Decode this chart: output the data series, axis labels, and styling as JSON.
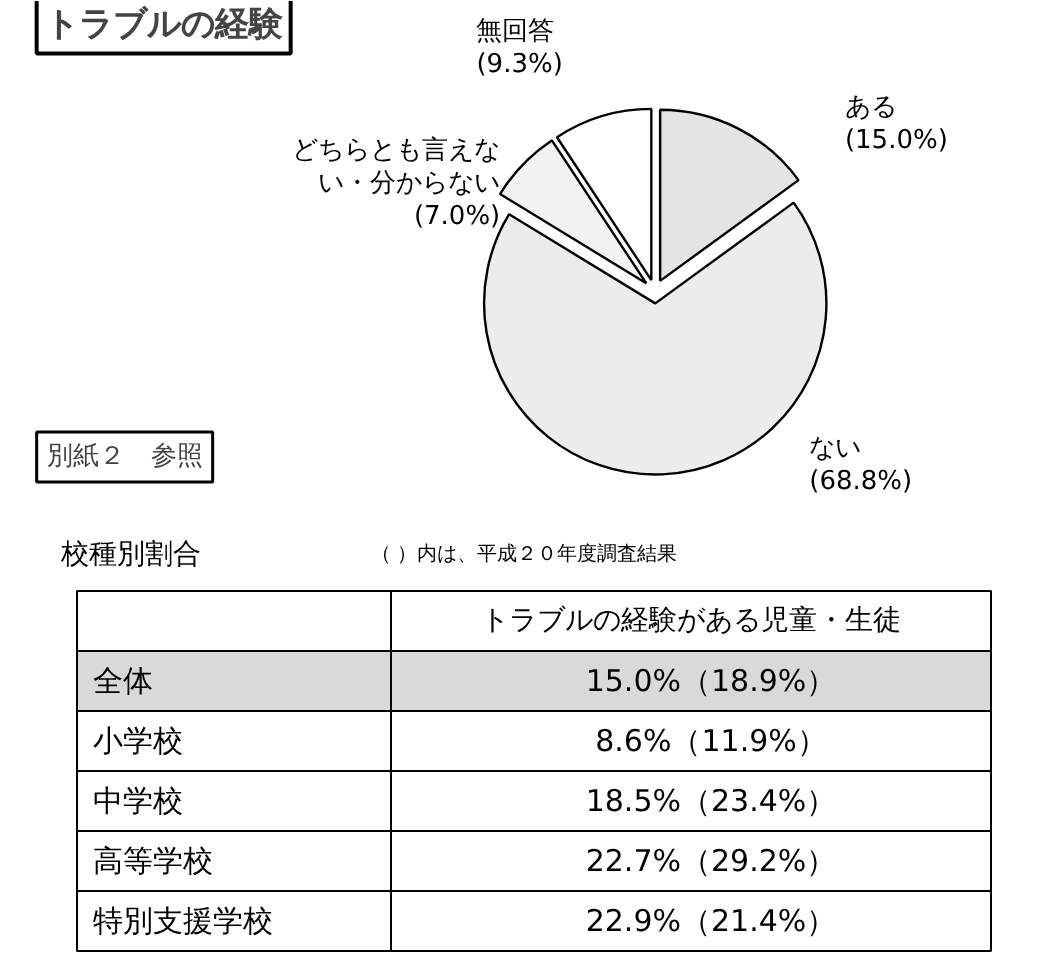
{
  "chart_data": [
    {
      "type": "pie",
      "title": "トラブルの経験",
      "categories": [
        "ある",
        "ない",
        "どちらとも言えない・分からない",
        "無回答"
      ],
      "values": [
        15.0,
        68.8,
        7.0,
        9.3
      ],
      "colors": [
        "#e4e4e4",
        "#ececec",
        "#f2f2f2",
        "#ffffff"
      ],
      "value_labels": [
        "(15.0%)",
        "(68.8%)",
        "(7.0%)",
        "(9.3%)"
      ],
      "annotations": [
        "別紙２　参照"
      ]
    },
    {
      "type": "other",
      "title": "校種別割合",
      "subtitle": "（ ）内は、平成２０年度調査結果",
      "xlabel": "トラブルの経験がある児童・生徒",
      "categories": [
        "全体",
        "小学校",
        "中学校",
        "高等学校",
        "特別支援学校"
      ],
      "value_labels": [
        "15.0%（18.9%）",
        "8.6%（11.9%）",
        "18.5%（23.4%）",
        "22.7%（29.2%）",
        "22.9%（21.4%）"
      ]
    }
  ]
}
